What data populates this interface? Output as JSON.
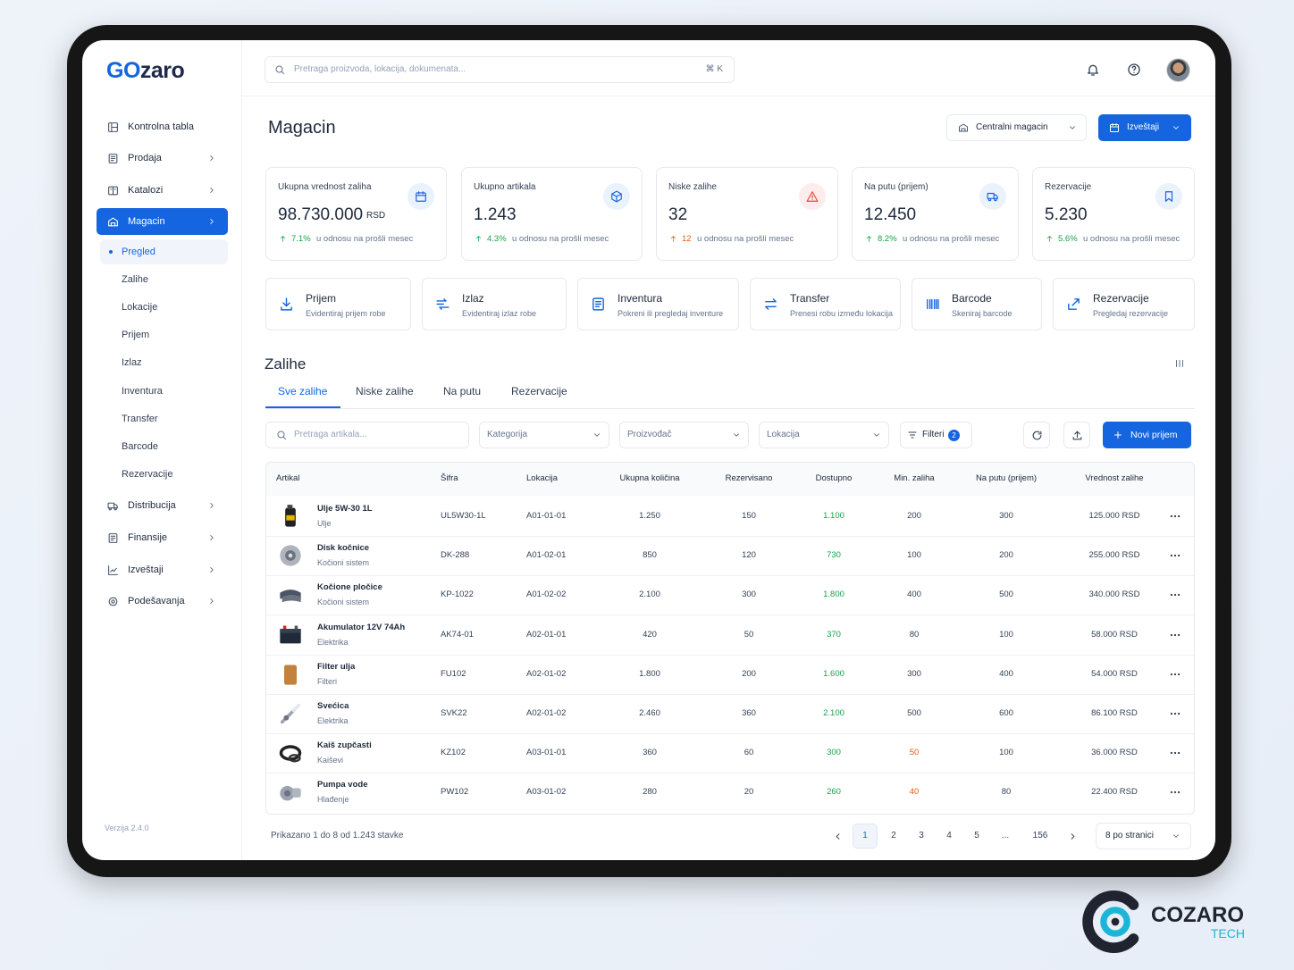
{
  "logo": {
    "accent": "GO",
    "rest": "zaro"
  },
  "sidebar": {
    "menu": [
      {
        "label": "Kontrolna tabla",
        "chevron": false
      },
      {
        "label": "Prodaja",
        "chevron": true
      },
      {
        "label": "Katalozi",
        "chevron": true
      },
      {
        "label": "Magacin",
        "chevron": true,
        "active": true
      },
      {
        "label": "Distribucija",
        "chevron": true
      },
      {
        "label": "Finansije",
        "chevron": true
      },
      {
        "label": "Izveštaji",
        "chevron": true
      },
      {
        "label": "Podešavanja",
        "chevron": true
      }
    ],
    "submenu": [
      "Pregled",
      "Zalihe",
      "Lokacije",
      "Prijem",
      "Izlaz",
      "Inventura",
      "Transfer",
      "Barcode",
      "Rezervacije"
    ],
    "version": "Verzija 2.4.0"
  },
  "search": {
    "placeholder": "Pretraga proizvoda, lokacija, dokumenata...",
    "shortcut": "⌘ K"
  },
  "page_title": "Magacin",
  "warehouse_select": "Centralni magacin",
  "reports_button": "Izveštaji",
  "kpis": [
    {
      "label": "Ukupna vrednost zaliha",
      "value": "98.730.000",
      "unit": "RSD",
      "change": "7.1%",
      "note": "u odnosu na prošli mesec"
    },
    {
      "label": "Ukupno artikala",
      "value": "1.243",
      "change": "4.3%",
      "note": "u odnosu na prošli mesec"
    },
    {
      "label": "Niske zalihe",
      "value": "32",
      "change": "12",
      "note": "u odnosu na prošli mesec",
      "alert": true
    },
    {
      "label": "Na putu (prijem)",
      "value": "12.450",
      "change": "8.2%",
      "note": "u odnosu na prošli mesec"
    },
    {
      "label": "Rezervacije",
      "value": "5.230",
      "change": "5.6%",
      "note": "u odnosu na prošli mesec"
    }
  ],
  "actions": [
    {
      "title": "Prijem",
      "subtitle": "Evidentiraj prijem robe"
    },
    {
      "title": "Izlaz",
      "subtitle": "Evidentiraj izlaz robe"
    },
    {
      "title": "Inventura",
      "subtitle": "Pokreni ili pregledaj inventure"
    },
    {
      "title": "Transfer",
      "subtitle": "Prenesi robu između lokacija"
    },
    {
      "title": "Barcode",
      "subtitle": "Skeniraj barcode"
    },
    {
      "title": "Rezervacije",
      "subtitle": "Pregledaj rezervacije"
    }
  ],
  "section_title": "Zalihe",
  "tabs": [
    "Sve zalihe",
    "Niske zalihe",
    "Na putu",
    "Rezervacije"
  ],
  "filters": {
    "search": "Pretraga artikala...",
    "dropdowns": [
      "Kategorija",
      "Proizvođač",
      "Lokacija"
    ],
    "filters_button": "Filteri",
    "filters_count": "2",
    "new_button": "Novi prijem"
  },
  "table": {
    "columns": [
      "Artikal",
      "Šifra",
      "Lokacija",
      "Ukupna količina",
      "Rezervisano",
      "Dostupno",
      "Min. zaliha",
      "Na putu (prijem)",
      "Vrednost zalihe"
    ],
    "rows": [
      {
        "name": "Ulje 5W-30 1L",
        "category": "Ulje",
        "code": "UL5W30-1L",
        "location": "A01-01-01",
        "total": "1.250",
        "reserved": "150",
        "available": "1.100",
        "min": "200",
        "transit": "300",
        "value": "125.000 RSD"
      },
      {
        "name": "Disk kočnice",
        "category": "Kočioni sistem",
        "code": "DK-288",
        "location": "A01-02-01",
        "total": "850",
        "reserved": "120",
        "available": "730",
        "min": "100",
        "transit": "200",
        "value": "255.000 RSD"
      },
      {
        "name": "Kočione pločice",
        "category": "Kočioni sistem",
        "code": "KP-1022",
        "location": "A01-02-02",
        "total": "2.100",
        "reserved": "300",
        "available": "1.800",
        "min": "400",
        "transit": "500",
        "value": "340.000 RSD"
      },
      {
        "name": "Akumulator 12V 74Ah",
        "category": "Elektrika",
        "code": "AK74-01",
        "location": "A02-01-01",
        "total": "420",
        "reserved": "50",
        "available": "370",
        "min": "80",
        "transit": "100",
        "value": "58.000 RSD"
      },
      {
        "name": "Filter ulja",
        "category": "Filteri",
        "code": "FU102",
        "location": "A02-01-02",
        "total": "1.800",
        "reserved": "200",
        "available": "1.600",
        "min": "300",
        "transit": "400",
        "value": "54.000 RSD"
      },
      {
        "name": "Svećica",
        "category": "Elektrika",
        "code": "SVK22",
        "location": "A02-01-02",
        "total": "2.460",
        "reserved": "360",
        "available": "2.100",
        "min": "500",
        "transit": "600",
        "value": "86.100 RSD"
      },
      {
        "name": "Kaiš zupčasti",
        "category": "Kaiševi",
        "code": "KZ102",
        "location": "A03-01-01",
        "total": "360",
        "reserved": "60",
        "available": "300",
        "min": "50",
        "transit": "100",
        "value": "36.000 RSD",
        "min_alert": true
      },
      {
        "name": "Pumpa vode",
        "category": "Hlađenje",
        "code": "PW102",
        "location": "A03-01-02",
        "total": "280",
        "reserved": "20",
        "available": "260",
        "min": "40",
        "transit": "80",
        "value": "22.400 RSD",
        "min_alert": true
      }
    ]
  },
  "pagination": {
    "summary": "Prikazano 1 do 8 od 1.243 stavke",
    "pages": [
      "1",
      "2",
      "3",
      "4",
      "5",
      "...",
      "156"
    ],
    "current": 0,
    "per_page": "8 po stranici"
  },
  "watermark": {
    "brand": "COZARO",
    "sub": "TECH"
  }
}
